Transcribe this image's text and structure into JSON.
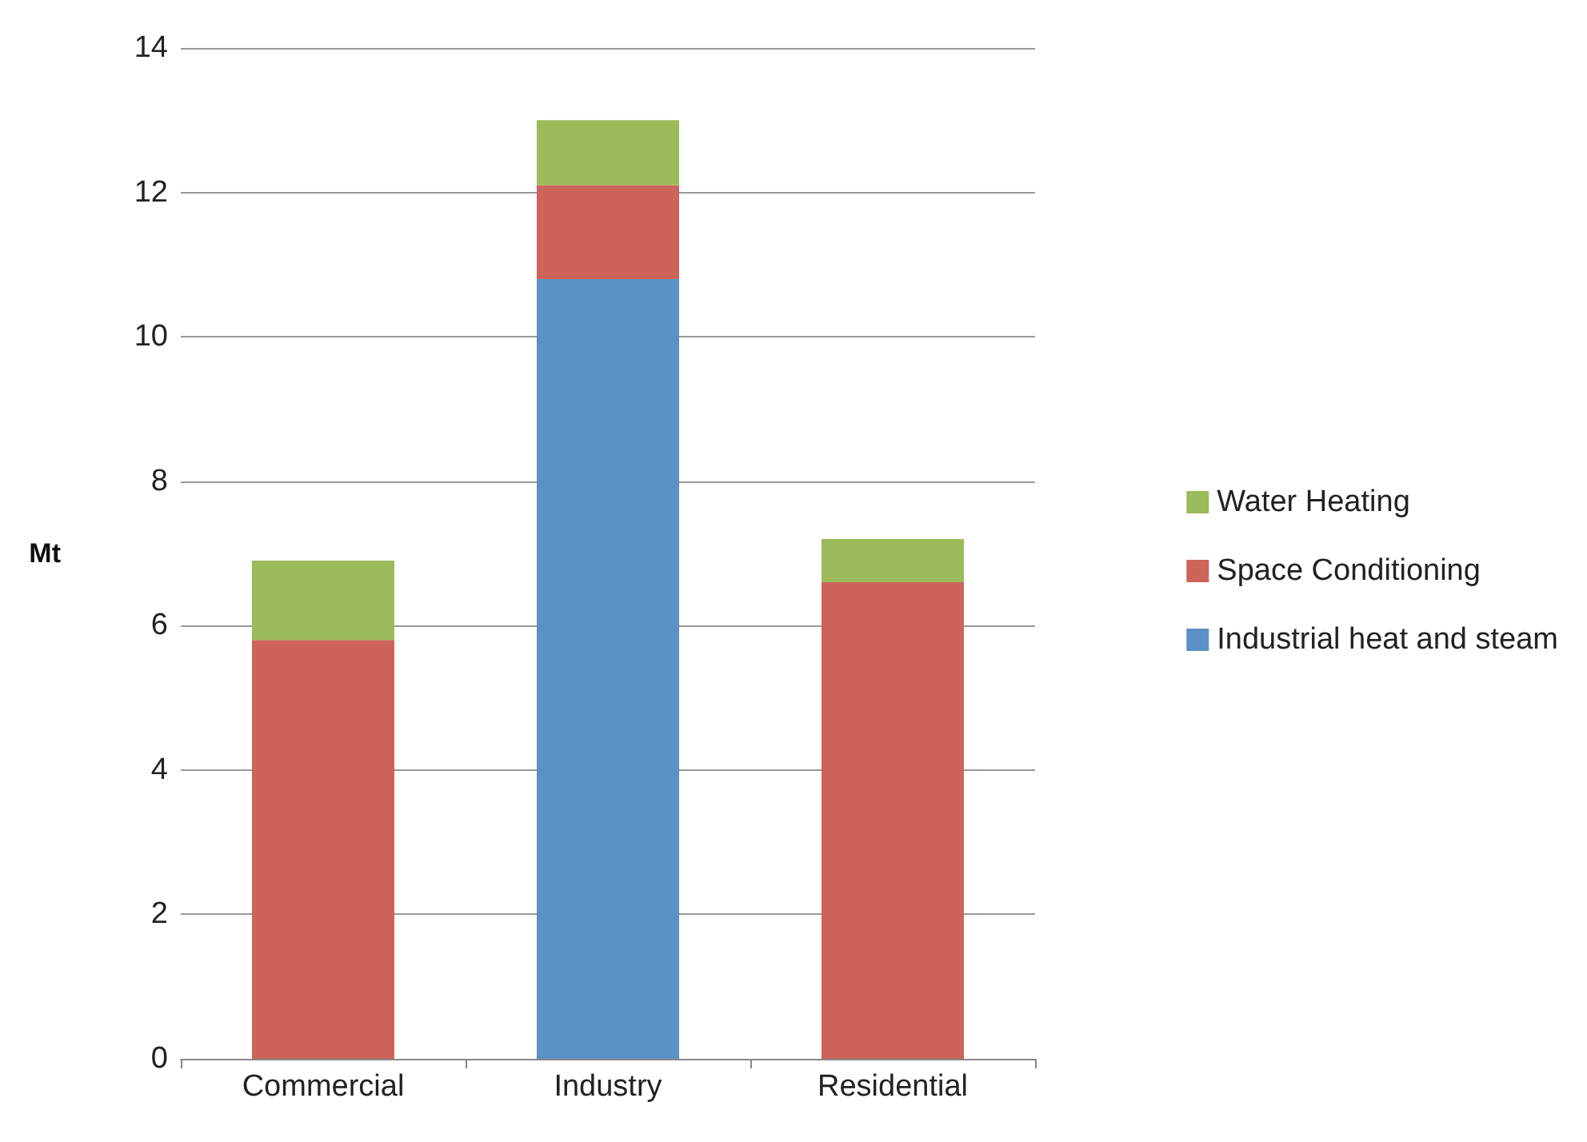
{
  "chart_data": {
    "type": "bar",
    "stacked": true,
    "ylabel": "Mt",
    "categories": [
      "Commercial",
      "Industry",
      "Residential"
    ],
    "series": [
      {
        "name": "Industrial heat and steam",
        "color": "#5b91c6",
        "values": [
          null,
          10.8,
          null
        ]
      },
      {
        "name": "Space Conditioning",
        "color": "#cd6459",
        "values": [
          5.8,
          1.3,
          6.6
        ]
      },
      {
        "name": "Water Heating",
        "color": "#9cbb5a",
        "values": [
          1.1,
          0.9,
          0.6
        ]
      }
    ],
    "ylim": [
      0,
      14
    ],
    "yticks": [
      0,
      2,
      4,
      6,
      8,
      10,
      12,
      14
    ],
    "grid": "y",
    "legend": "right"
  }
}
